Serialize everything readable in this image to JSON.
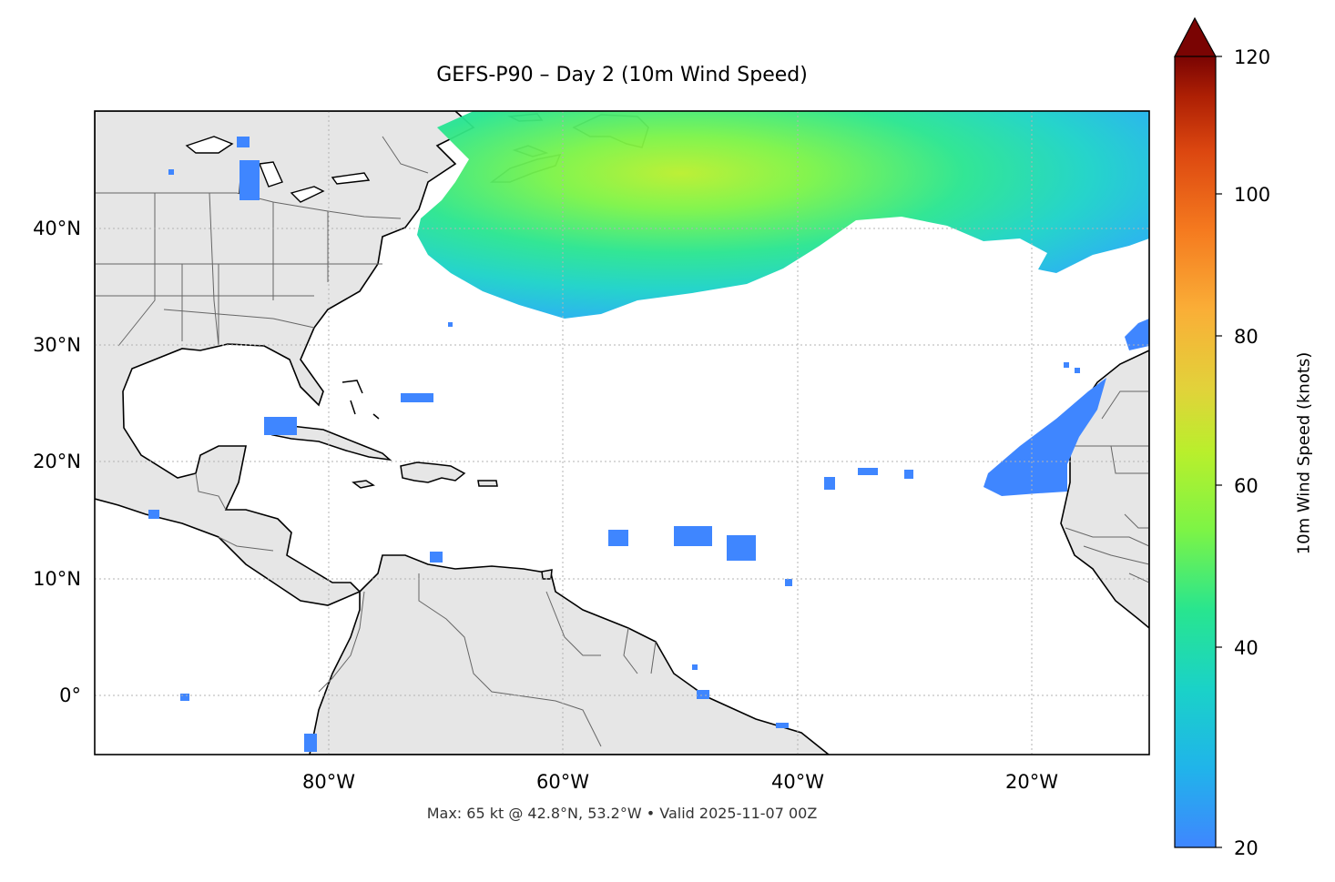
{
  "title": "GEFS-P90 – Day 2 (10m Wind Speed)",
  "footer": "Max: 65 kt @ 42.8°N, 53.2°W • Valid 2025-11-07 00Z",
  "map": {
    "lon_labels": [
      "80°W",
      "60°W",
      "40°W",
      "20°W"
    ],
    "lat_labels": [
      "40°N",
      "30°N",
      "20°N",
      "10°N",
      "0°"
    ],
    "land_color": "#e6e6e6",
    "coast_color": "#000000",
    "border_color": "#666666",
    "grid_color": "#b3b3b3"
  },
  "colorbar": {
    "label": "10m Wind Speed (knots)",
    "ticks": [
      "20",
      "40",
      "60",
      "80",
      "100",
      "120"
    ],
    "range": [
      20,
      120
    ],
    "extend": "max",
    "colors": [
      "#3f86ff",
      "#20b4ea",
      "#1ad2c8",
      "#28e58f",
      "#7cf446",
      "#b9ef2c",
      "#e2d23a",
      "#faae37",
      "#f57a1f",
      "#dc4710",
      "#ad1f04",
      "#7a0403"
    ]
  },
  "wind_field": {
    "units": "kt",
    "max": 65,
    "max_location": "42.8°N, 53.2°W"
  }
}
